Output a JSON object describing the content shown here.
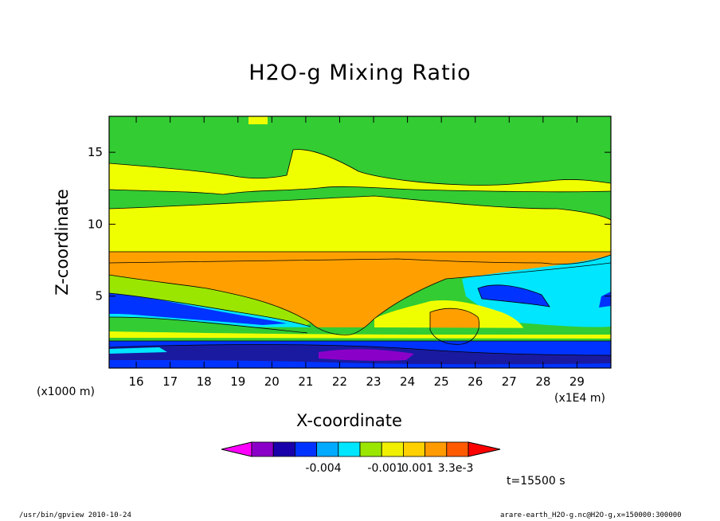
{
  "chart_data": {
    "type": "heatmap",
    "title": "H2O-g Mixing Ratio",
    "xlabel": "X-coordinate",
    "ylabel": "Z-coordinate",
    "x_unit_left": "(x1000 m)",
    "x_unit_right": "(x1E4 m)",
    "xlim": [
      15.2,
      30.0
    ],
    "ylim": [
      0,
      17.5
    ],
    "xticks": [
      "16",
      "17",
      "18",
      "19",
      "20",
      "21",
      "22",
      "23",
      "24",
      "25",
      "26",
      "27",
      "28",
      "29"
    ],
    "xtick_values": [
      16,
      17,
      18,
      19,
      20,
      21,
      22,
      23,
      24,
      25,
      26,
      27,
      28,
      29
    ],
    "yticks": [
      "5",
      "10",
      "15"
    ],
    "ytick_values": [
      5,
      10,
      15
    ],
    "colorbar": {
      "colors": [
        "#ff00ff",
        "#8b00c8",
        "#1a00aa",
        "#0033ff",
        "#00aaff",
        "#00e6ff",
        "#9be600",
        "#f0f000",
        "#ffd000",
        "#ff9a00",
        "#ff5a00",
        "#ff0000"
      ],
      "labels": [
        "-0.004",
        "-0.001",
        "0.001",
        "3.3e-3"
      ]
    },
    "bands": [
      {
        "label": "green upper",
        "color": "#33cc33"
      },
      {
        "label": "yellow",
        "color": "#f0ff00"
      },
      {
        "label": "orange",
        "color": "#ffa000"
      },
      {
        "label": "cyan",
        "color": "#00e6ff"
      },
      {
        "label": "blue",
        "color": "#0033ff"
      },
      {
        "label": "dark blue",
        "color": "#1a1aa0"
      },
      {
        "label": "purple",
        "color": "#8b00c8"
      }
    ]
  },
  "annotations": {
    "time": "t=15500 s",
    "footer_left": "/usr/bin/gpview  2010-10-24",
    "footer_right": "arare-earth_H2O-g.nc@H2O-g,x=150000:300000"
  }
}
